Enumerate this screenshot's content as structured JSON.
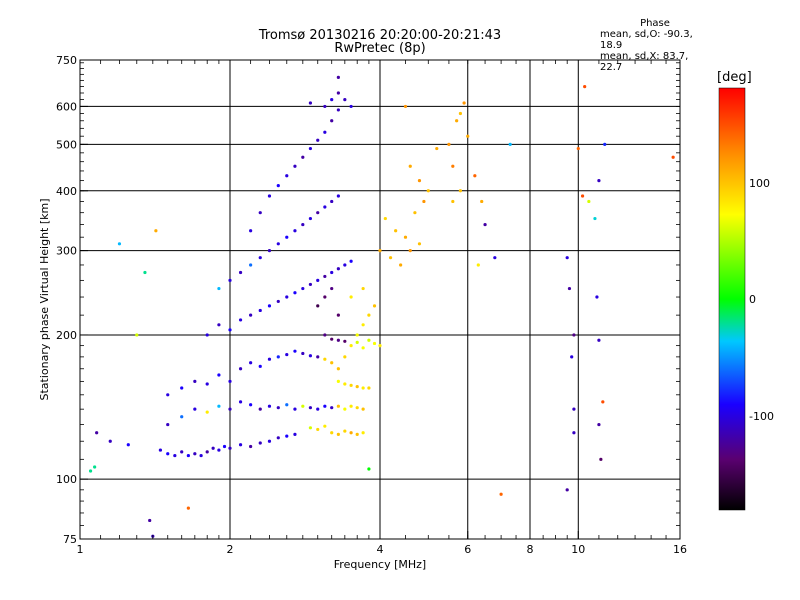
{
  "header": {
    "title_line1": "Tromsø 20130216 20:20:00-20:21:43",
    "title_line2": "RwPretec (8p)"
  },
  "phase_box": {
    "heading": "Phase",
    "line_o": "mean, sd,O: -90.3, 18.9",
    "line_x": "mean, sd,X:  83.7, 22.7"
  },
  "colorbar": {
    "unit_label": "[deg]",
    "tick_labels": [
      "100",
      "0",
      "-100"
    ],
    "tick_values": [
      100,
      0,
      -100
    ],
    "range": [
      -180,
      180
    ]
  },
  "chart_data": {
    "type": "scatter",
    "title": "Tromsø 20130216 20:20:00-20:21:43",
    "subtitle": "RwPretec (8p)",
    "xlabel": "Frequency [MHz]",
    "ylabel": "Stationary phase Virtual Height [km]",
    "xscale": "log",
    "yscale": "log",
    "xlim": [
      1,
      16
    ],
    "ylim": [
      75,
      750
    ],
    "x_ticks": [
      1,
      2,
      4,
      6,
      8,
      10,
      16
    ],
    "x_tick_labels": [
      "1",
      "2",
      "4",
      "6",
      "8",
      "10",
      "16"
    ],
    "y_ticks": [
      75,
      100,
      200,
      300,
      400,
      500,
      600,
      750
    ],
    "y_tick_labels": [
      "75",
      "100",
      "200",
      "300",
      "400",
      "500",
      "600",
      "750"
    ],
    "grid": true,
    "color_encodes": "phase [deg]",
    "points": [
      [
        1.05,
        104,
        -20
      ],
      [
        1.07,
        106,
        -20
      ],
      [
        1.08,
        125,
        -120
      ],
      [
        1.15,
        120,
        -110
      ],
      [
        1.2,
        310,
        -40
      ],
      [
        1.25,
        118,
        -90
      ],
      [
        1.3,
        200,
        60
      ],
      [
        1.35,
        270,
        -20
      ],
      [
        1.38,
        82,
        -120
      ],
      [
        1.4,
        76,
        -110
      ],
      [
        1.42,
        330,
        110
      ],
      [
        1.45,
        115,
        -100
      ],
      [
        1.5,
        113,
        -90
      ],
      [
        1.55,
        112,
        -100
      ],
      [
        1.6,
        114,
        -110
      ],
      [
        1.65,
        112,
        -90
      ],
      [
        1.7,
        113,
        -110
      ],
      [
        1.75,
        112,
        -100
      ],
      [
        1.8,
        114,
        -120
      ],
      [
        1.85,
        116,
        -110
      ],
      [
        1.9,
        115,
        -100
      ],
      [
        1.95,
        117,
        -90
      ],
      [
        2.0,
        116,
        -110
      ],
      [
        2.1,
        118,
        -100
      ],
      [
        2.2,
        117,
        -120
      ],
      [
        2.3,
        119,
        -110
      ],
      [
        2.4,
        120,
        -100
      ],
      [
        2.5,
        122,
        -110
      ],
      [
        2.6,
        123,
        -90
      ],
      [
        2.7,
        124,
        -100
      ],
      [
        1.5,
        130,
        -110
      ],
      [
        1.6,
        135,
        -60
      ],
      [
        1.7,
        140,
        -100
      ],
      [
        1.8,
        138,
        80
      ],
      [
        1.9,
        142,
        -40
      ],
      [
        2.0,
        140,
        -110
      ],
      [
        2.1,
        145,
        -100
      ],
      [
        2.2,
        143,
        -90
      ],
      [
        2.3,
        140,
        -120
      ],
      [
        2.4,
        142,
        -100
      ],
      [
        2.5,
        141,
        -110
      ],
      [
        2.6,
        143,
        -60
      ],
      [
        2.7,
        140,
        -100
      ],
      [
        2.8,
        142,
        60
      ],
      [
        2.9,
        141,
        -110
      ],
      [
        3.0,
        140,
        -100
      ],
      [
        3.1,
        142,
        -90
      ],
      [
        3.2,
        141,
        -110
      ],
      [
        3.3,
        142,
        100
      ],
      [
        3.4,
        140,
        70
      ],
      [
        3.5,
        142,
        80
      ],
      [
        3.6,
        141,
        90
      ],
      [
        3.7,
        140,
        100
      ],
      [
        3.2,
        125,
        90
      ],
      [
        3.3,
        124,
        100
      ],
      [
        3.4,
        126,
        90
      ],
      [
        3.5,
        125,
        110
      ],
      [
        3.6,
        124,
        100
      ],
      [
        3.7,
        125,
        80
      ],
      [
        2.9,
        128,
        60
      ],
      [
        3.0,
        127,
        90
      ],
      [
        3.1,
        129,
        80
      ],
      [
        1.5,
        150,
        -100
      ],
      [
        1.6,
        155,
        -90
      ],
      [
        1.7,
        160,
        -110
      ],
      [
        1.8,
        158,
        -100
      ],
      [
        1.9,
        165,
        -90
      ],
      [
        2.0,
        160,
        -100
      ],
      [
        2.1,
        170,
        -110
      ],
      [
        2.2,
        175,
        -100
      ],
      [
        2.3,
        172,
        -90
      ],
      [
        2.4,
        178,
        -100
      ],
      [
        2.5,
        180,
        -80
      ],
      [
        2.6,
        182,
        -100
      ],
      [
        2.7,
        185,
        -90
      ],
      [
        2.8,
        183,
        -110
      ],
      [
        2.9,
        181,
        -100
      ],
      [
        3.0,
        180,
        -120
      ],
      [
        3.1,
        178,
        90
      ],
      [
        3.2,
        175,
        100
      ],
      [
        3.3,
        160,
        70
      ],
      [
        3.4,
        158,
        80
      ],
      [
        3.5,
        157,
        90
      ],
      [
        3.6,
        156,
        100
      ],
      [
        3.7,
        155,
        80
      ],
      [
        3.8,
        155,
        90
      ],
      [
        3.3,
        170,
        100
      ],
      [
        3.4,
        180,
        90
      ],
      [
        3.5,
        190,
        80
      ],
      [
        3.6,
        200,
        70
      ],
      [
        3.7,
        210,
        80
      ],
      [
        3.8,
        220,
        90
      ],
      [
        3.9,
        230,
        100
      ],
      [
        3.5,
        240,
        80
      ],
      [
        3.7,
        250,
        90
      ],
      [
        3.8,
        195,
        60
      ],
      [
        3.9,
        192,
        70
      ],
      [
        4.0,
        190,
        80
      ],
      [
        3.6,
        193,
        60
      ],
      [
        3.7,
        188,
        70
      ],
      [
        1.8,
        200,
        -100
      ],
      [
        1.9,
        210,
        -110
      ],
      [
        2.0,
        205,
        -90
      ],
      [
        2.1,
        215,
        -100
      ],
      [
        2.2,
        220,
        -110
      ],
      [
        2.3,
        225,
        -100
      ],
      [
        2.4,
        230,
        -90
      ],
      [
        2.5,
        235,
        -110
      ],
      [
        2.6,
        240,
        -100
      ],
      [
        2.7,
        245,
        -90
      ],
      [
        2.8,
        250,
        -100
      ],
      [
        2.9,
        255,
        -110
      ],
      [
        3.0,
        260,
        -100
      ],
      [
        3.1,
        265,
        -120
      ],
      [
        3.2,
        270,
        -100
      ],
      [
        3.3,
        275,
        -110
      ],
      [
        3.4,
        280,
        -100
      ],
      [
        3.5,
        285,
        -90
      ],
      [
        1.9,
        250,
        -40
      ],
      [
        2.0,
        260,
        -100
      ],
      [
        2.1,
        270,
        -110
      ],
      [
        2.2,
        280,
        -60
      ],
      [
        2.3,
        290,
        -100
      ],
      [
        2.4,
        300,
        -110
      ],
      [
        2.5,
        310,
        -100
      ],
      [
        2.6,
        320,
        -90
      ],
      [
        2.7,
        330,
        -100
      ],
      [
        2.8,
        340,
        -110
      ],
      [
        2.9,
        350,
        -100
      ],
      [
        3.0,
        360,
        -120
      ],
      [
        3.1,
        370,
        -100
      ],
      [
        3.2,
        380,
        -110
      ],
      [
        3.3,
        390,
        -100
      ],
      [
        2.2,
        330,
        -100
      ],
      [
        2.3,
        360,
        -110
      ],
      [
        2.4,
        390,
        -100
      ],
      [
        2.5,
        410,
        -90
      ],
      [
        2.6,
        430,
        -100
      ],
      [
        2.7,
        450,
        -110
      ],
      [
        2.8,
        470,
        -120
      ],
      [
        2.9,
        490,
        -100
      ],
      [
        3.0,
        510,
        -110
      ],
      [
        3.1,
        530,
        -100
      ],
      [
        3.2,
        560,
        -120
      ],
      [
        3.3,
        590,
        -110
      ],
      [
        3.1,
        600,
        -110
      ],
      [
        3.2,
        620,
        -100
      ],
      [
        3.3,
        640,
        -120
      ],
      [
        3.4,
        620,
        -110
      ],
      [
        3.5,
        600,
        -100
      ],
      [
        2.9,
        610,
        -110
      ],
      [
        3.3,
        690,
        -120
      ],
      [
        3.1,
        200,
        -130
      ],
      [
        3.2,
        196,
        -140
      ],
      [
        3.3,
        195,
        -130
      ],
      [
        3.4,
        194,
        -140
      ],
      [
        3.0,
        230,
        -150
      ],
      [
        3.1,
        240,
        -140
      ],
      [
        3.2,
        250,
        -130
      ],
      [
        3.3,
        220,
        -140
      ],
      [
        4.0,
        300,
        110
      ],
      [
        4.2,
        290,
        100
      ],
      [
        4.4,
        280,
        110
      ],
      [
        4.6,
        300,
        120
      ],
      [
        4.8,
        310,
        100
      ],
      [
        4.1,
        350,
        90
      ],
      [
        4.3,
        330,
        100
      ],
      [
        4.5,
        320,
        110
      ],
      [
        4.7,
        360,
        100
      ],
      [
        4.9,
        380,
        120
      ],
      [
        4.6,
        450,
        110
      ],
      [
        4.8,
        420,
        120
      ],
      [
        5.0,
        400,
        100
      ],
      [
        4.5,
        600,
        120
      ],
      [
        5.2,
        490,
        110
      ],
      [
        5.5,
        500,
        120
      ],
      [
        5.7,
        560,
        110
      ],
      [
        5.8,
        580,
        100
      ],
      [
        5.9,
        610,
        120
      ],
      [
        5.6,
        450,
        130
      ],
      [
        5.8,
        400,
        100
      ],
      [
        6.0,
        520,
        110
      ],
      [
        5.6,
        380,
        100
      ],
      [
        6.2,
        430,
        140
      ],
      [
        6.4,
        380,
        110
      ],
      [
        6.5,
        340,
        -120
      ],
      [
        6.3,
        280,
        80
      ],
      [
        6.8,
        290,
        -100
      ],
      [
        7.0,
        93,
        140
      ],
      [
        7.3,
        500,
        -40
      ],
      [
        9.5,
        290,
        -100
      ],
      [
        9.6,
        250,
        -120
      ],
      [
        9.8,
        200,
        -130
      ],
      [
        9.7,
        180,
        -100
      ],
      [
        9.8,
        140,
        -110
      ],
      [
        9.5,
        95,
        -120
      ],
      [
        10.0,
        490,
        140
      ],
      [
        10.2,
        390,
        150
      ],
      [
        10.5,
        380,
        60
      ],
      [
        10.8,
        350,
        -30
      ],
      [
        10.9,
        240,
        -100
      ],
      [
        11.0,
        195,
        -110
      ],
      [
        11.2,
        145,
        150
      ],
      [
        11.0,
        130,
        -120
      ],
      [
        11.1,
        110,
        -140
      ],
      [
        11.3,
        500,
        -80
      ],
      [
        11.0,
        420,
        -110
      ],
      [
        10.3,
        660,
        150
      ],
      [
        15.5,
        470,
        150
      ],
      [
        3.8,
        105,
        0
      ],
      [
        1.65,
        87,
        140
      ],
      [
        9.8,
        125,
        -110
      ]
    ]
  }
}
